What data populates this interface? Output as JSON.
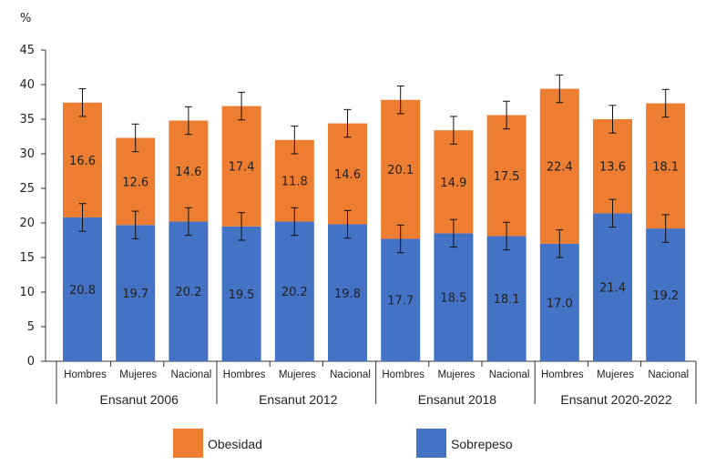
{
  "chart_data": {
    "type": "bar",
    "stacked": true,
    "unit_label": "%",
    "ylim": [
      0,
      45
    ],
    "yticks": [
      0,
      5,
      10,
      15,
      20,
      25,
      30,
      35,
      40,
      45
    ],
    "groups": [
      {
        "name": "Ensanut 2006",
        "categories": [
          "Hombres",
          "Mujeres",
          "Nacional"
        ]
      },
      {
        "name": "Ensanut 2012",
        "categories": [
          "Hombres",
          "Mujeres",
          "Nacional"
        ]
      },
      {
        "name": "Ensanut 2018",
        "categories": [
          "Hombres",
          "Mujeres",
          "Nacional"
        ]
      },
      {
        "name": "Ensanut 2020-2022",
        "categories": [
          "Hombres",
          "Mujeres",
          "Nacional"
        ]
      }
    ],
    "series": [
      {
        "name": "Sobrepeso",
        "color": "#4472c4",
        "values": [
          20.8,
          19.7,
          20.2,
          19.5,
          20.2,
          19.8,
          17.7,
          18.5,
          18.1,
          17.0,
          21.4,
          19.2
        ],
        "labels": [
          "20.8",
          "19.7",
          "20.2",
          "19.5",
          "20.2",
          "19.8",
          "17.7",
          "18.5",
          "18.1",
          "17.0",
          "21.4",
          "19.2"
        ],
        "error": [
          2.0,
          2.0,
          2.0,
          2.0,
          2.0,
          2.0,
          2.0,
          2.0,
          2.0,
          2.0,
          2.0,
          2.0
        ]
      },
      {
        "name": "Obesidad",
        "color": "#ed7d31",
        "values": [
          16.6,
          12.6,
          14.6,
          17.4,
          11.8,
          14.6,
          20.1,
          14.9,
          17.5,
          22.4,
          13.6,
          18.1
        ],
        "labels": [
          "16.6",
          "12.6",
          "14.6",
          "17.4",
          "11.8",
          "14.6",
          "20.1",
          "14.9",
          "17.5",
          "22.4",
          "13.6",
          "18.1"
        ],
        "error": [
          2.0,
          2.0,
          2.0,
          2.0,
          2.0,
          2.0,
          2.0,
          2.0,
          2.0,
          2.0,
          2.0,
          2.0
        ]
      }
    ],
    "legend": [
      {
        "name": "Obesidad",
        "color": "#ed7d31"
      },
      {
        "name": "Sobrepeso",
        "color": "#4472c4"
      }
    ],
    "legend_position": "bottom"
  }
}
